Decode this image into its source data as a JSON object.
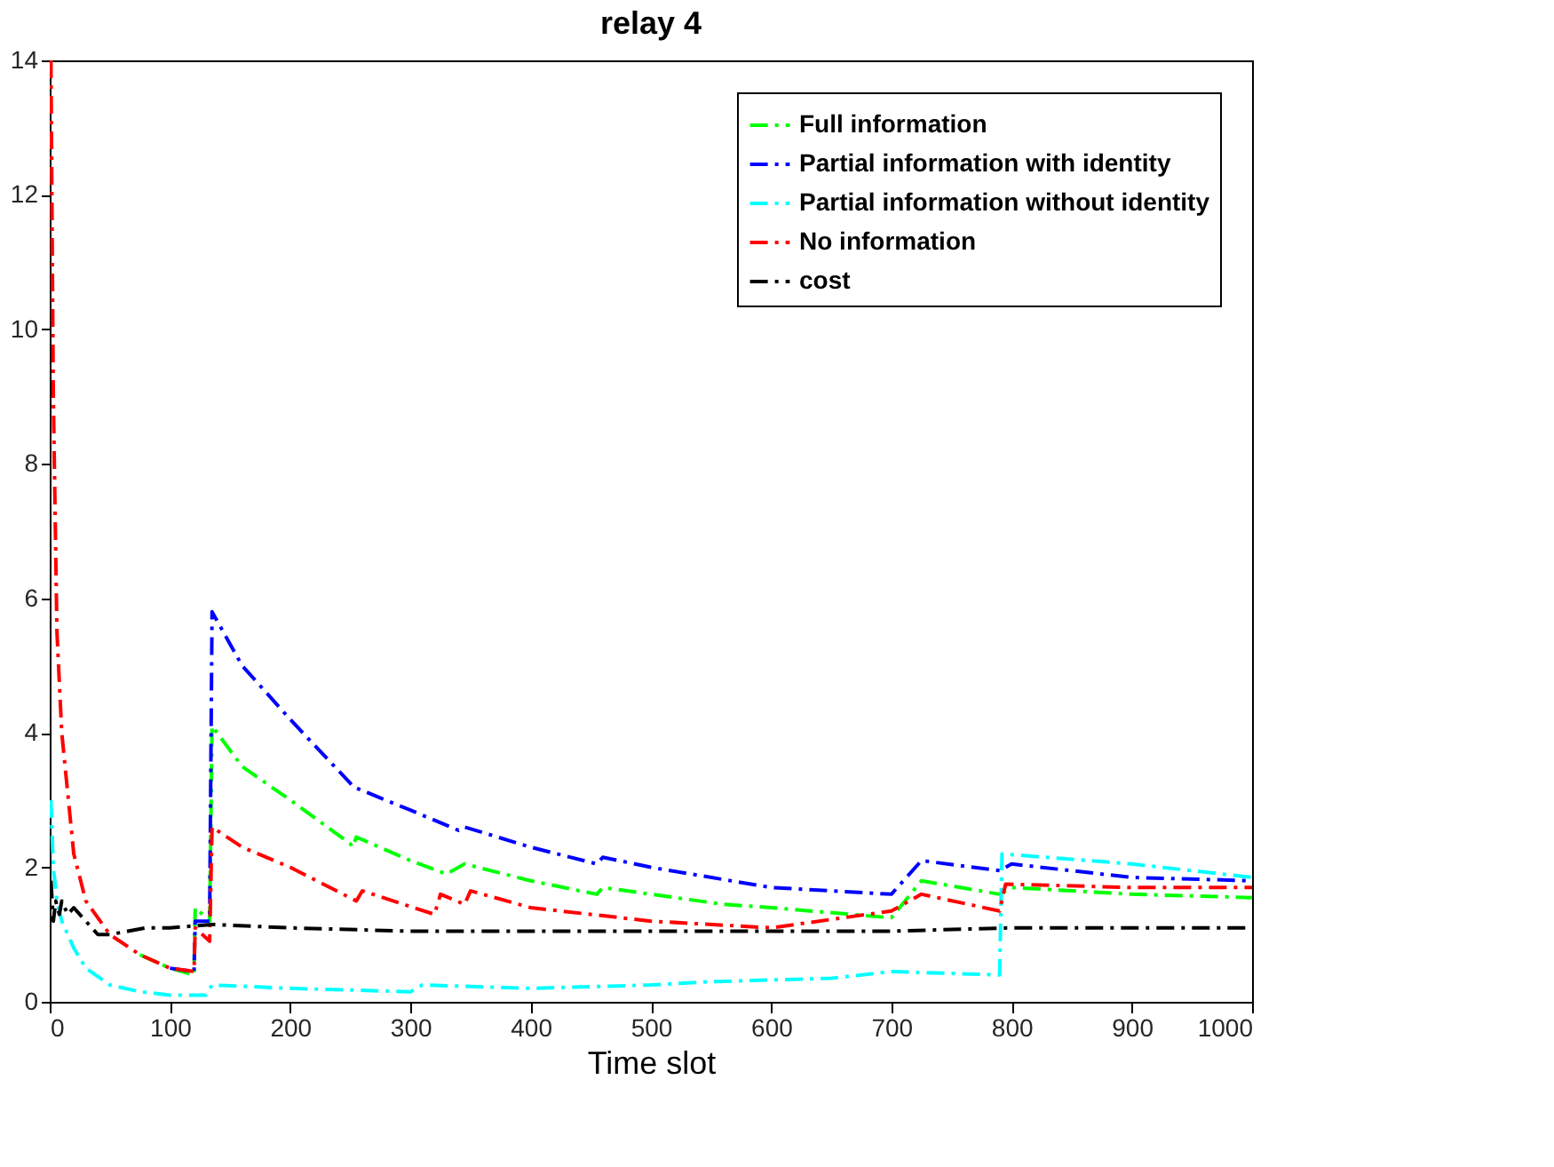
{
  "chart_data": {
    "type": "line",
    "title": "relay 4",
    "xlabel": "Time slot",
    "xlim": [
      0,
      1000
    ],
    "xticks": [
      0,
      100,
      200,
      300,
      400,
      500,
      600,
      700,
      800,
      900,
      1000
    ],
    "ylim": [
      0,
      14
    ],
    "yticks": [
      0,
      2,
      4,
      6,
      8,
      10,
      12,
      14
    ],
    "grid": false,
    "legend": "top right",
    "line_style": "dashed",
    "marker": "none",
    "series": [
      {
        "name": "Full information",
        "color": "#00ff00",
        "x": [
          75,
          100,
          120,
          121,
          133,
          135,
          160,
          200,
          250,
          252,
          255,
          300,
          330,
          345,
          400,
          455,
          460,
          500,
          560,
          600,
          700,
          725,
          790,
          800,
          900,
          1000
        ],
        "values": [
          0.7,
          0.5,
          0.4,
          1.4,
          1.2,
          4.1,
          3.5,
          3.0,
          2.35,
          2.3,
          2.45,
          2.1,
          1.9,
          2.05,
          1.8,
          1.6,
          1.7,
          1.6,
          1.45,
          1.4,
          1.25,
          1.8,
          1.6,
          1.7,
          1.6,
          1.55
        ]
      },
      {
        "name": "Partial information with identity",
        "color": "#0000ff",
        "x": [
          100,
          120,
          121,
          133,
          135,
          160,
          200,
          250,
          252,
          300,
          340,
          345,
          400,
          455,
          460,
          500,
          600,
          700,
          725,
          790,
          800,
          900,
          1000
        ],
        "values": [
          0.5,
          0.45,
          1.2,
          1.2,
          5.8,
          5.0,
          4.2,
          3.25,
          3.2,
          2.85,
          2.55,
          2.6,
          2.3,
          2.05,
          2.15,
          2.0,
          1.7,
          1.6,
          2.1,
          1.95,
          2.05,
          1.85,
          1.8
        ]
      },
      {
        "name": "Partial information without identity",
        "color": "#00ffff",
        "x": [
          1,
          3,
          6,
          10,
          20,
          30,
          50,
          75,
          100,
          130,
          135,
          200,
          300,
          310,
          400,
          500,
          550,
          650,
          700,
          790,
          792,
          900,
          1000
        ],
        "values": [
          3,
          2,
          1.5,
          1.2,
          0.8,
          0.5,
          0.25,
          0.15,
          0.1,
          0.1,
          0.25,
          0.2,
          0.15,
          0.25,
          0.2,
          0.25,
          0.3,
          0.35,
          0.45,
          0.4,
          2.2,
          2.05,
          1.85
        ]
      },
      {
        "name": "No information",
        "color": "#ff0000",
        "x": [
          1,
          3,
          6,
          10,
          20,
          30,
          50,
          75,
          100,
          120,
          121,
          133,
          135,
          160,
          200,
          255,
          260,
          320,
          325,
          345,
          350,
          400,
          500,
          600,
          700,
          725,
          790,
          795,
          900,
          1000
        ],
        "values": [
          14,
          9,
          5.5,
          4,
          2.2,
          1.5,
          1.0,
          0.7,
          0.5,
          0.45,
          1.1,
          0.9,
          2.6,
          2.3,
          2.0,
          1.5,
          1.65,
          1.3,
          1.6,
          1.45,
          1.65,
          1.4,
          1.2,
          1.1,
          1.35,
          1.6,
          1.35,
          1.75,
          1.7,
          1.7
        ]
      },
      {
        "name": "cost",
        "color": "#000000",
        "x": [
          1,
          3,
          5,
          8,
          10,
          15,
          20,
          30,
          40,
          50,
          65,
          80,
          100,
          135,
          200,
          300,
          400,
          500,
          600,
          700,
          800,
          900,
          1000
        ],
        "values": [
          1.8,
          1.2,
          1.5,
          1.3,
          1.5,
          1.3,
          1.4,
          1.2,
          1.0,
          1.0,
          1.05,
          1.1,
          1.1,
          1.15,
          1.1,
          1.05,
          1.05,
          1.05,
          1.05,
          1.05,
          1.1,
          1.1,
          1.1
        ]
      }
    ]
  }
}
